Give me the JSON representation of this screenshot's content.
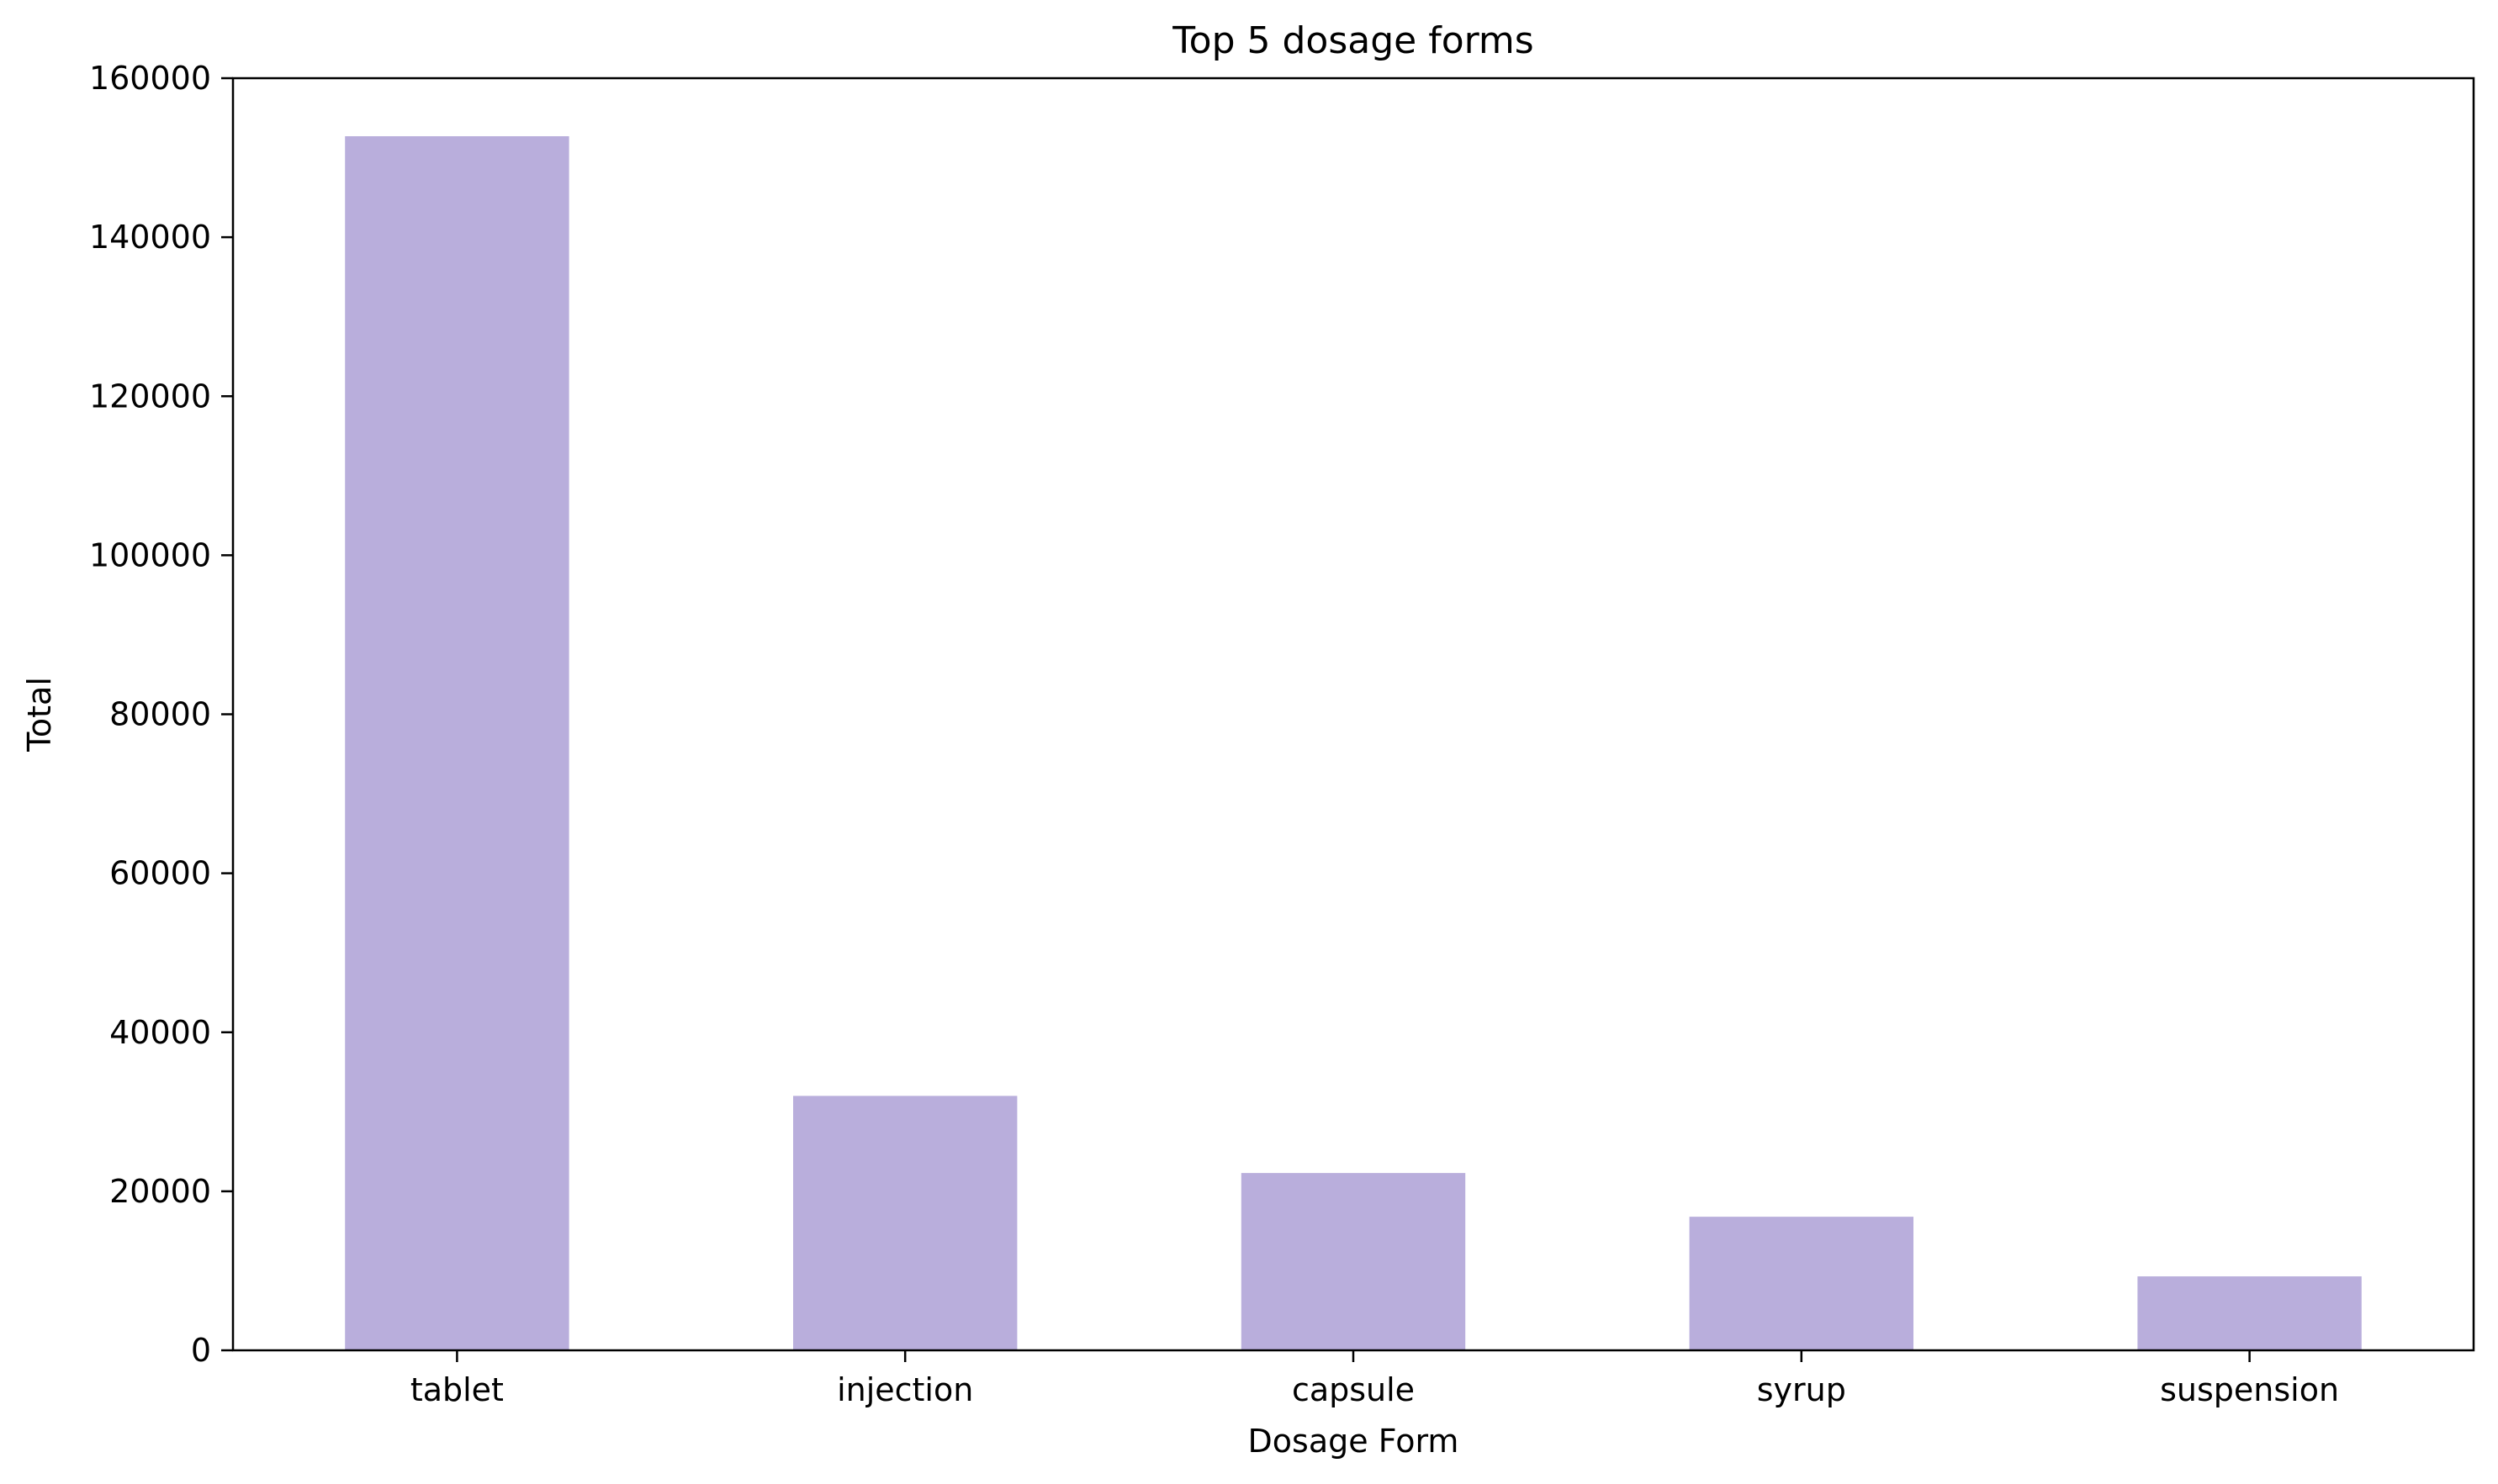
{
  "chart_data": {
    "type": "bar",
    "title": "Top 5 dosage forms",
    "xlabel": "Dosage Form",
    "ylabel": "Total",
    "categories": [
      "tablet",
      "injection",
      "capsule",
      "syrup",
      "suspension"
    ],
    "values": [
      152700,
      32000,
      22300,
      16800,
      9300
    ],
    "ylim": [
      0,
      160000
    ],
    "yticks": [
      0,
      20000,
      40000,
      60000,
      80000,
      100000,
      120000,
      140000,
      160000
    ],
    "grid": false,
    "legend": "none",
    "bar_color": "#b9aedc"
  }
}
